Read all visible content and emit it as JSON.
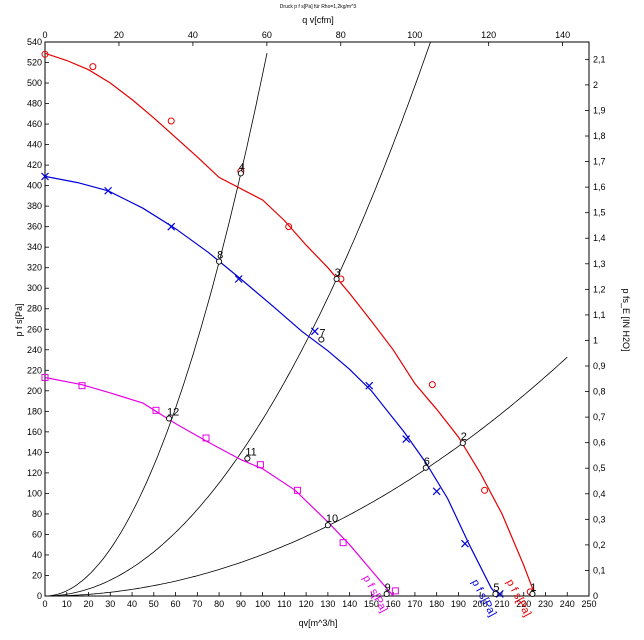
{
  "chart_data": {
    "type": "line",
    "title": "Druck p f s[Pa] für Rho=1,2kg/m^3",
    "xlabel": "qv[m^3/h]",
    "ylabel": "p f s[Pa]",
    "x2label": "q v[cfm]",
    "y2label": "p fs_E [IN H2O]",
    "xlim": [
      0,
      250
    ],
    "ylim": [
      0,
      540
    ],
    "x2lim": [
      0,
      147.14
    ],
    "y2lim": [
      0,
      2.1679
    ],
    "xticks": [
      0,
      10,
      20,
      30,
      40,
      50,
      60,
      70,
      80,
      90,
      100,
      110,
      120,
      130,
      140,
      150,
      160,
      170,
      180,
      190,
      200,
      210,
      220,
      230,
      240,
      250
    ],
    "yticks": [
      0,
      20,
      40,
      60,
      80,
      100,
      120,
      140,
      160,
      180,
      200,
      220,
      240,
      260,
      280,
      300,
      320,
      340,
      360,
      380,
      400,
      420,
      440,
      460,
      480,
      500,
      520,
      540
    ],
    "x2ticks": [
      0,
      20,
      40,
      60,
      80,
      100,
      120,
      140
    ],
    "y2ticks": [
      "0",
      "0,1",
      "0,2",
      "0,3",
      "0,4",
      "0,5",
      "0,6",
      "0,7",
      "0,8",
      "0,9",
      "1",
      "1,1",
      "1,2",
      "1,3",
      "1,4",
      "1,5",
      "1,6",
      "1,7",
      "1,8",
      "1,9",
      "2",
      "2,1"
    ],
    "grid": false,
    "series": [
      {
        "name": "p f s[Pa]",
        "color": "#e60000",
        "marker": "circle",
        "points": [
          [
            0,
            529
          ],
          [
            10,
            522
          ],
          [
            20,
            513
          ],
          [
            30,
            500
          ],
          [
            40,
            484
          ],
          [
            50,
            466
          ],
          [
            60,
            447
          ],
          [
            70,
            428
          ],
          [
            80,
            408
          ],
          [
            90,
            416
          ],
          [
            100,
            386
          ],
          [
            110,
            366
          ],
          [
            120,
            342
          ],
          [
            130,
            320
          ],
          [
            140,
            295
          ],
          [
            150,
            268
          ],
          [
            160,
            240
          ],
          [
            170,
            207
          ],
          [
            180,
            182
          ],
          [
            190,
            155
          ],
          [
            200,
            120
          ],
          [
            210,
            80
          ],
          [
            220,
            30
          ],
          [
            225,
            2
          ]
        ],
        "markers": [
          [
            0,
            528
          ],
          [
            22,
            516
          ],
          [
            58,
            463
          ],
          [
            90,
            414
          ],
          [
            112,
            360
          ],
          [
            136,
            309
          ],
          [
            178,
            206
          ],
          [
            202,
            103
          ],
          [
            223,
            4
          ]
        ]
      },
      {
        "name": "p f s[Pa]",
        "color": "#0000d8",
        "marker": "cross",
        "points": [
          [
            0,
            409
          ],
          [
            15,
            403
          ],
          [
            29,
            395
          ],
          [
            45,
            378
          ],
          [
            60,
            358
          ],
          [
            75,
            335
          ],
          [
            90,
            309
          ],
          [
            105,
            282
          ],
          [
            118,
            258
          ],
          [
            130,
            239
          ],
          [
            140,
            221
          ],
          [
            150,
            200
          ],
          [
            165,
            160
          ],
          [
            175,
            130
          ],
          [
            185,
            95
          ],
          [
            195,
            50
          ],
          [
            205,
            8
          ],
          [
            208,
            0
          ]
        ],
        "markers": [
          [
            0,
            409
          ],
          [
            29,
            395
          ],
          [
            58,
            360
          ],
          [
            89,
            309
          ],
          [
            124,
            258
          ],
          [
            149,
            205
          ],
          [
            166,
            153
          ],
          [
            180,
            102
          ],
          [
            193,
            51
          ],
          [
            209,
            2
          ]
        ]
      },
      {
        "name": "p f s[Pa]",
        "color": "#e600e6",
        "marker": "square",
        "points": [
          [
            0,
            213
          ],
          [
            17,
            206
          ],
          [
            30,
            198
          ],
          [
            45,
            188
          ],
          [
            60,
            168
          ],
          [
            75,
            150
          ],
          [
            90,
            133
          ],
          [
            100,
            124
          ],
          [
            115,
            103
          ],
          [
            130,
            72
          ],
          [
            140,
            50
          ],
          [
            150,
            25
          ],
          [
            158,
            5
          ],
          [
            160,
            0
          ]
        ],
        "markers": [
          [
            0,
            213
          ],
          [
            17,
            205
          ],
          [
            51,
            181
          ],
          [
            74,
            154
          ],
          [
            99,
            128
          ],
          [
            116,
            103
          ],
          [
            137,
            52
          ],
          [
            161,
            5
          ]
        ]
      }
    ],
    "system_curves": [
      {
        "xmax": 102
      },
      {
        "xmax": 188
      },
      {
        "xmax": 240
      }
    ],
    "operating_points": [
      {
        "label": "1",
        "x": 224,
        "y": 2
      },
      {
        "label": "2",
        "x": 192,
        "y": 149
      },
      {
        "label": "3",
        "x": 134,
        "y": 309
      },
      {
        "label": "4",
        "x": 90,
        "y": 412
      },
      {
        "label": "5",
        "x": 207,
        "y": 2
      },
      {
        "label": "6",
        "x": 175,
        "y": 125
      },
      {
        "label": "7",
        "x": 127,
        "y": 250
      },
      {
        "label": "8",
        "x": 80,
        "y": 326
      },
      {
        "label": "9",
        "x": 157,
        "y": 2
      },
      {
        "label": "10",
        "x": 130,
        "y": 69
      },
      {
        "label": "11",
        "x": 93,
        "y": 134
      },
      {
        "label": "12",
        "x": 57,
        "y": 173
      }
    ],
    "curve_labels": [
      {
        "text": "p f s[Pa]",
        "series": 0
      },
      {
        "text": "p f s[Pa]",
        "series": 1
      },
      {
        "text": "p f s[Pa]",
        "series": 2
      }
    ]
  }
}
